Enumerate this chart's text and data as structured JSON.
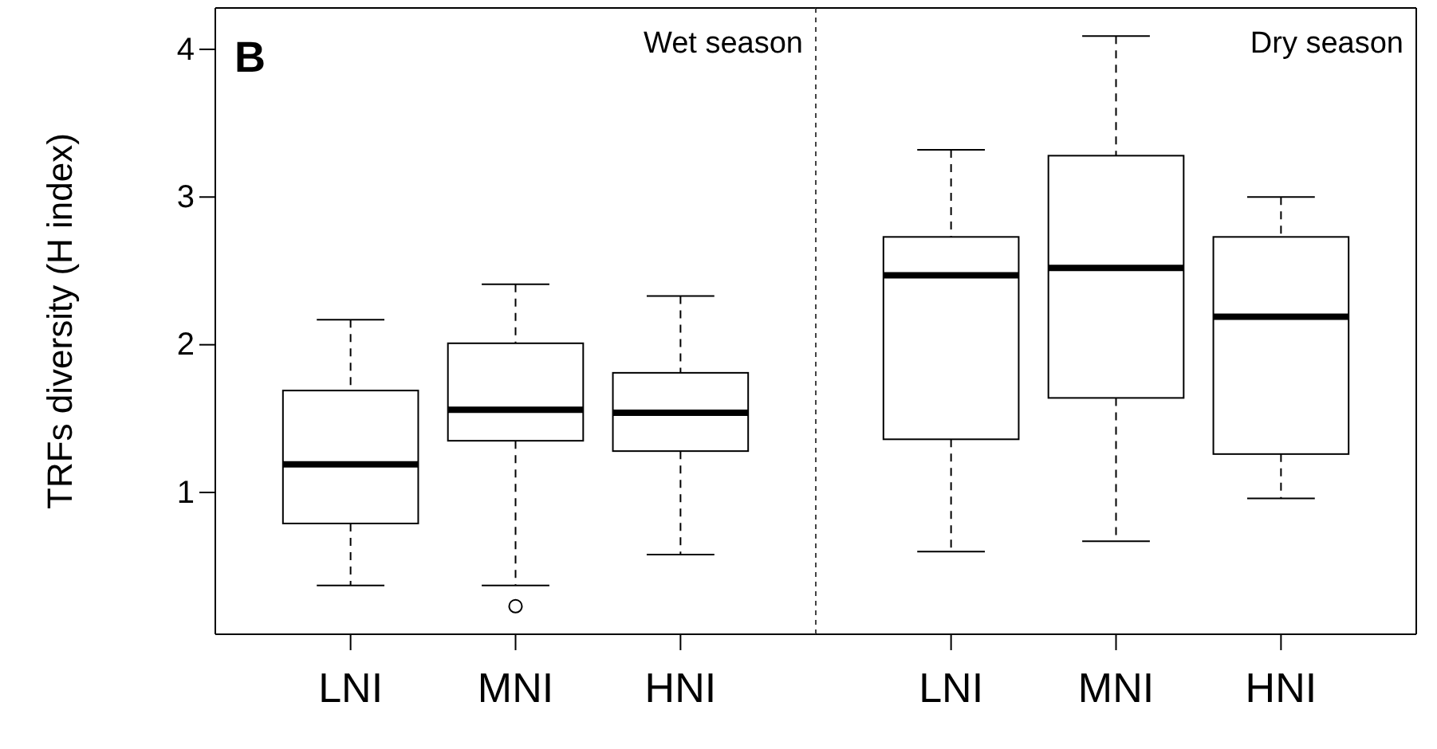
{
  "chart_data": [
    {
      "type": "box",
      "title": "Wet season",
      "ylabel": "TRFs diversity (H index)",
      "annotations": [
        "B"
      ],
      "categories": [
        "LNI",
        "MNI",
        "HNI"
      ],
      "ylim": [
        0.04,
        4.28
      ],
      "yticks": [
        1,
        2,
        3,
        4
      ],
      "grid": false,
      "boxes": [
        {
          "low": 0.37,
          "q1": 0.79,
          "median": 1.19,
          "q3": 1.69,
          "high": 2.17
        },
        {
          "low": 0.37,
          "q1": 1.35,
          "median": 1.56,
          "q3": 2.01,
          "high": 2.41,
          "outliers": [
            0.23
          ]
        },
        {
          "low": 0.58,
          "q1": 1.28,
          "median": 1.54,
          "q3": 1.81,
          "high": 2.33
        }
      ]
    },
    {
      "type": "box",
      "title": "Dry season",
      "categories": [
        "LNI",
        "MNI",
        "HNI"
      ],
      "ylim": [
        0.04,
        4.28
      ],
      "yticks": [
        1,
        2,
        3,
        4
      ],
      "tick_labels": "x",
      "grid": false,
      "boxes": [
        {
          "low": 0.6,
          "q1": 1.36,
          "median": 2.47,
          "q3": 2.73,
          "high": 3.32
        },
        {
          "low": 0.67,
          "q1": 1.64,
          "median": 2.52,
          "q3": 3.28,
          "high": 4.09
        },
        {
          "low": 0.96,
          "q1": 1.26,
          "median": 2.19,
          "q3": 2.73,
          "high": 3.0
        }
      ]
    }
  ]
}
